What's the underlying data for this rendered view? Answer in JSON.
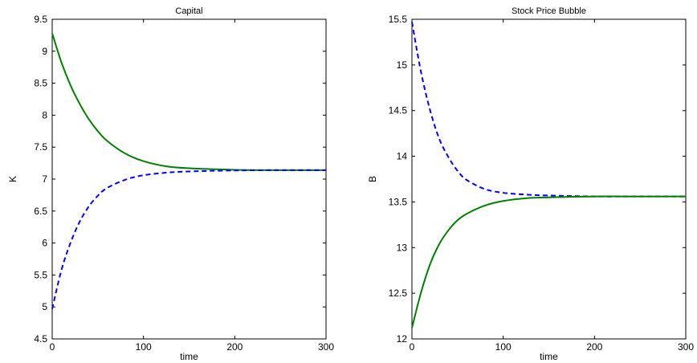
{
  "chart_data": [
    {
      "type": "line",
      "title": "Capital",
      "xlabel": "time",
      "ylabel": "K",
      "xlim": [
        0,
        300
      ],
      "ylim": [
        4.5,
        9.5
      ],
      "xticks": [
        0,
        100,
        200,
        300
      ],
      "yticks": [
        4.5,
        5,
        5.5,
        6,
        6.5,
        7,
        7.5,
        8,
        8.5,
        9,
        9.5
      ],
      "grid": false,
      "series": [
        {
          "style": "solid",
          "color": "#007f00",
          "x": [
            0,
            10,
            20,
            30,
            40,
            50,
            60,
            80,
            100,
            125,
            150,
            200,
            250,
            300
          ],
          "y": [
            9.28,
            8.83,
            8.47,
            8.18,
            7.94,
            7.75,
            7.6,
            7.4,
            7.28,
            7.2,
            7.17,
            7.145,
            7.14,
            7.14
          ]
        },
        {
          "style": "dashed",
          "color": "#0000ff",
          "x": [
            0,
            10,
            20,
            30,
            40,
            50,
            60,
            80,
            100,
            125,
            150,
            200,
            250,
            300
          ],
          "y": [
            4.97,
            5.57,
            6.0,
            6.33,
            6.57,
            6.74,
            6.86,
            6.99,
            7.06,
            7.1,
            7.12,
            7.135,
            7.14,
            7.14
          ]
        }
      ]
    },
    {
      "type": "line",
      "title": "Stock Price Bubble",
      "xlabel": "time",
      "ylabel": "B",
      "xlim": [
        0,
        300
      ],
      "ylim": [
        12,
        15.5
      ],
      "xticks": [
        0,
        100,
        200,
        300
      ],
      "yticks": [
        12,
        12.5,
        13,
        13.5,
        14,
        14.5,
        15,
        15.5
      ],
      "grid": false,
      "series": [
        {
          "style": "dashed",
          "color": "#0000ff",
          "x": [
            0,
            10,
            20,
            30,
            40,
            50,
            60,
            80,
            100,
            125,
            150,
            200,
            250,
            300
          ],
          "y": [
            15.47,
            14.92,
            14.5,
            14.19,
            13.99,
            13.84,
            13.74,
            13.64,
            13.6,
            13.58,
            13.57,
            13.56,
            13.56,
            13.56
          ]
        },
        {
          "style": "solid",
          "color": "#007f00",
          "x": [
            0,
            10,
            20,
            30,
            40,
            50,
            60,
            80,
            100,
            125,
            150,
            200,
            250,
            300
          ],
          "y": [
            12.12,
            12.51,
            12.82,
            13.04,
            13.19,
            13.3,
            13.37,
            13.46,
            13.51,
            13.54,
            13.55,
            13.56,
            13.56,
            13.56
          ]
        }
      ]
    }
  ]
}
